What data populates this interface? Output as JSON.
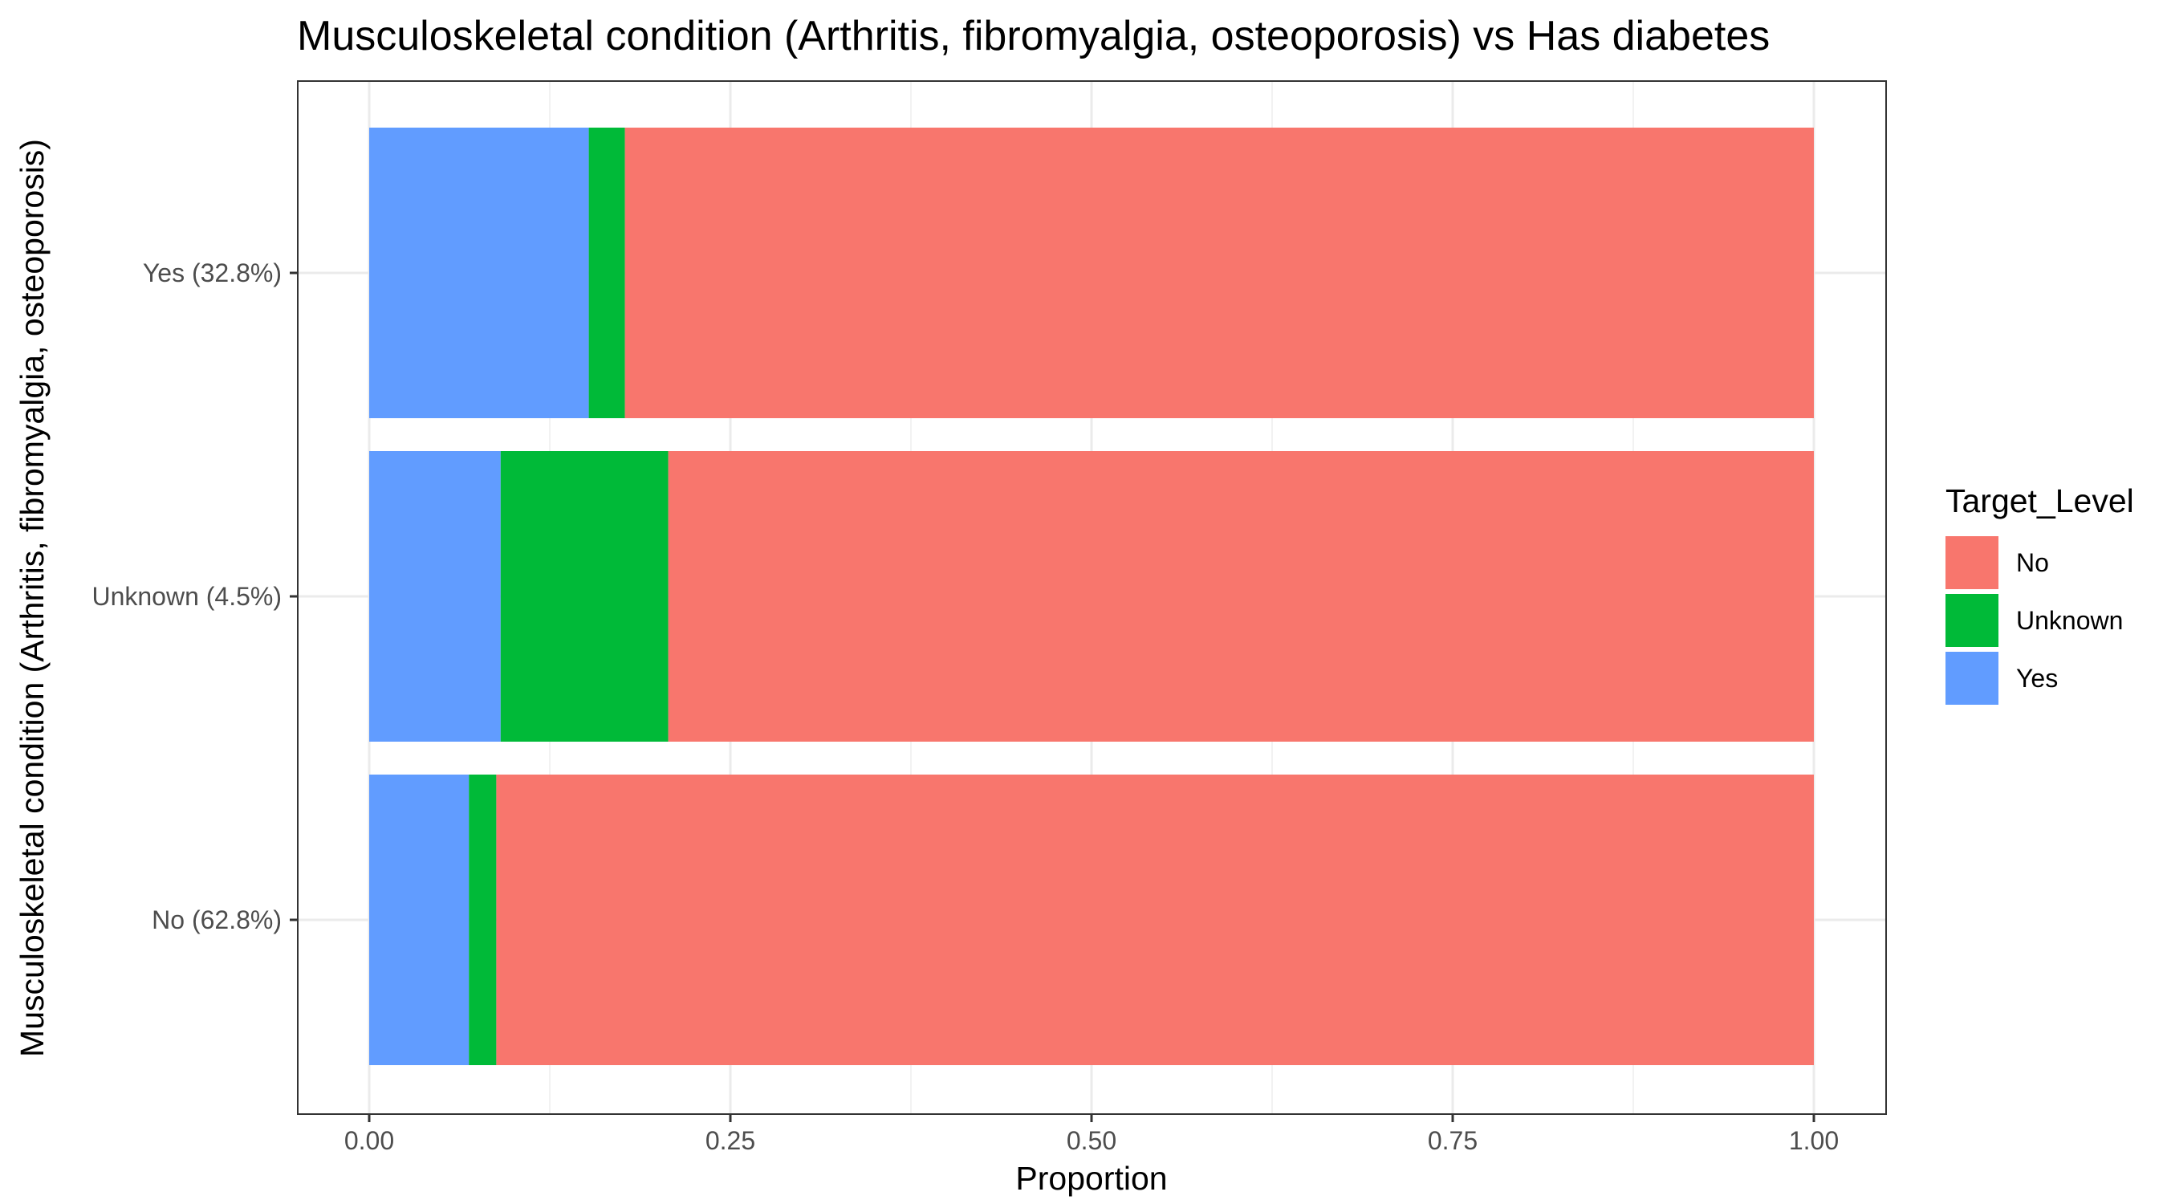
{
  "chart_data": {
    "type": "bar",
    "orientation": "horizontal",
    "stacked": true,
    "title": "Musculoskeletal condition (Arthritis, fibromyalgia, osteoporosis) vs Has diabetes",
    "xlabel": "Proportion",
    "ylabel": "Musculoskeletal condition (Arthritis, fibromyalgia, osteoporosis)",
    "xlim": [
      0,
      1
    ],
    "x_ticks": [
      "0.00",
      "0.25",
      "0.50",
      "0.75",
      "1.00"
    ],
    "x_tick_values": [
      0,
      0.25,
      0.5,
      0.75,
      1.0
    ],
    "categories": [
      "No (62.8%)",
      "Unknown (4.5%)",
      "Yes (32.8%)"
    ],
    "legend_title": "Target_Level",
    "legend_position": "right",
    "grid": true,
    "series": [
      {
        "name": "No",
        "color": "#F8766D",
        "values": [
          0.912,
          0.793,
          0.823
        ]
      },
      {
        "name": "Unknown",
        "color": "#00BA38",
        "values": [
          0.019,
          0.116,
          0.025
        ]
      },
      {
        "name": "Yes",
        "color": "#619CFF",
        "values": [
          0.069,
          0.091,
          0.152
        ]
      }
    ],
    "stack_order_left_to_right": [
      "Yes",
      "Unknown",
      "No"
    ]
  }
}
